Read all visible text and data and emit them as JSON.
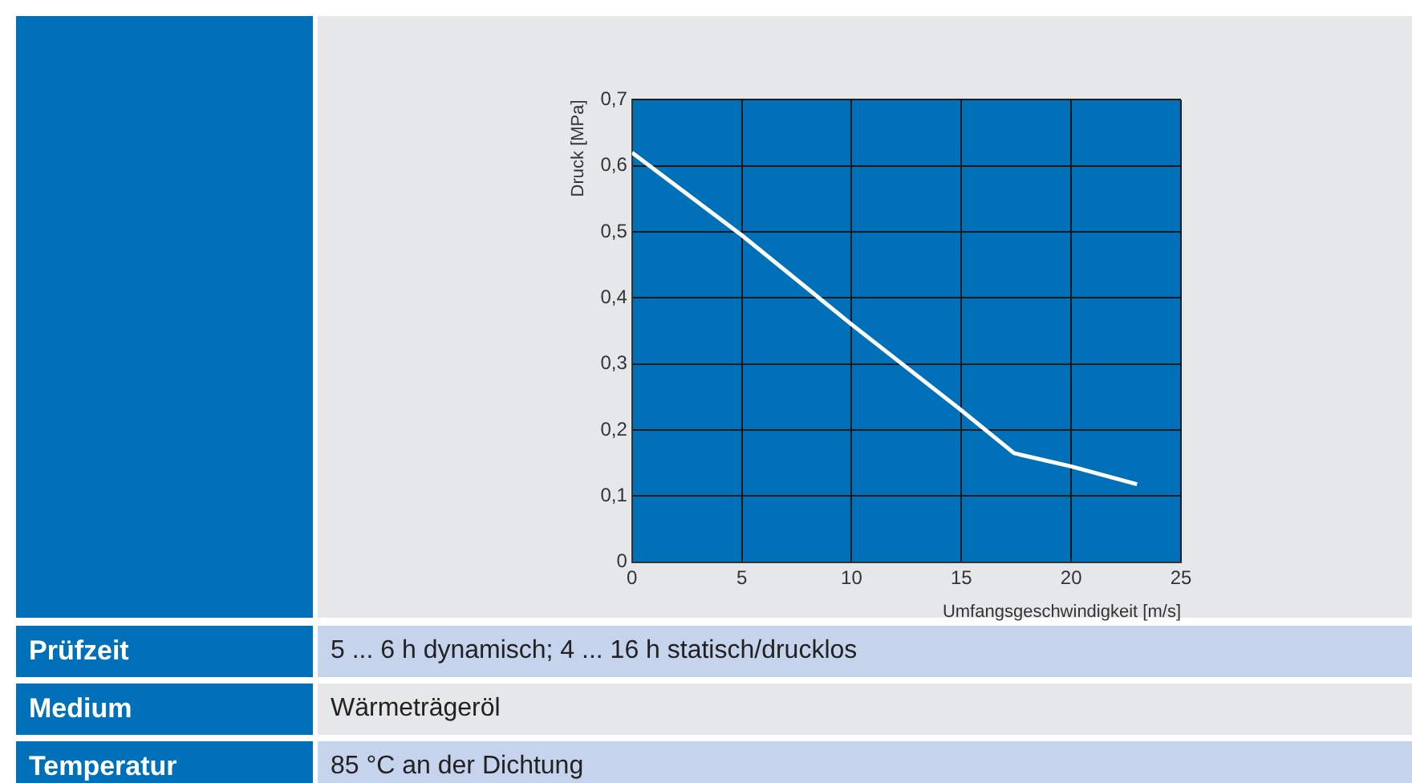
{
  "chart_data": {
    "type": "line",
    "xlabel": "Umfangsgeschwindigkeit [m/s]",
    "ylabel": "Druck [MPa]",
    "x": [
      0,
      5,
      10,
      15,
      17.4,
      20,
      23
    ],
    "series": [
      {
        "color": "#ffffff",
        "values": [
          0.62,
          0.495,
          0.36,
          0.23,
          0.165,
          0.145,
          0.118
        ]
      }
    ],
    "xlim": [
      0,
      25
    ],
    "xticks": [
      0,
      5,
      10,
      15,
      20,
      25
    ],
    "ylim": [
      0,
      0.7
    ],
    "yticks": [
      0,
      {
        "value": 0.1,
        "label": "0,1"
      },
      {
        "value": 0.2,
        "label": "0,2"
      },
      {
        "value": 0.3,
        "label": "0,3"
      },
      {
        "value": 0.4,
        "label": "0,4"
      },
      {
        "value": 0.5,
        "label": "0,5"
      },
      {
        "value": 0.6,
        "label": "0,6"
      },
      {
        "value": 0.7,
        "label": "0,7"
      }
    ],
    "grid": true,
    "legend": false,
    "marker": "none",
    "line_style": "solid",
    "annotations": [
      "Prüfzeit",
      "5 ... 6 h dynamisch; 4 ... 16 h statisch/drucklos",
      "Medium",
      "Wärmeträgeröl",
      "Temperatur",
      "85 °C an der Dichtung"
    ]
  }
}
